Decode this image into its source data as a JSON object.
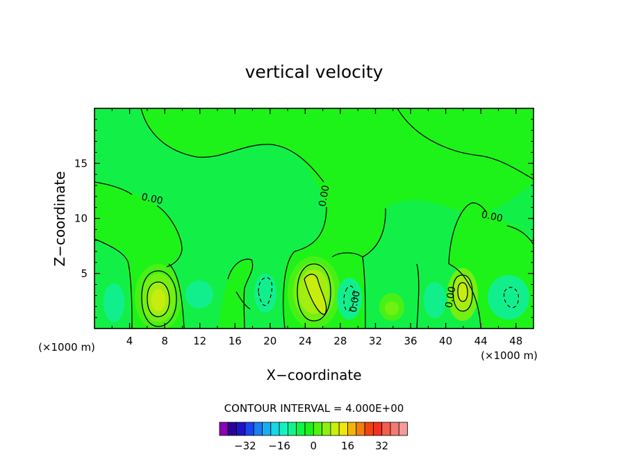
{
  "chart_data": {
    "type": "contour",
    "title": "vertical velocity",
    "xlabel": "X−coordinate",
    "ylabel": "Z−coordinate",
    "x_unit_left": "(×1000 m)",
    "x_unit_right": "(×1000 m)",
    "xlim": [
      0,
      50
    ],
    "ylim": [
      0,
      20
    ],
    "x_ticks": [
      4,
      8,
      12,
      16,
      20,
      24,
      28,
      32,
      36,
      40,
      44,
      48
    ],
    "x_tick_labels": [
      "4",
      "8",
      "12",
      "16",
      "20",
      "24",
      "28",
      "32",
      "36",
      "40",
      "44",
      "48"
    ],
    "y_ticks": [
      5,
      10,
      15
    ],
    "y_tick_labels": [
      "5",
      "10",
      "15"
    ],
    "contour_interval_text": "CONTOUR INTERVAL = 4.000E+00",
    "contour_labels": [
      {
        "text": "0.00",
        "x": 6.5,
        "z": 11.5
      },
      {
        "text": "0.00",
        "x": 26.5,
        "z": 12.0
      },
      {
        "text": "0.00",
        "x": 45.2,
        "z": 9.9
      },
      {
        "text": "0.00",
        "x": 30.0,
        "z": 2.4
      },
      {
        "text": "0.00",
        "x": 40.9,
        "z": 2.8
      }
    ],
    "colorbar": {
      "colors": [
        "#8a00b5",
        "#2a0098",
        "#1f12c8",
        "#1b45ef",
        "#1a7df2",
        "#17aef0",
        "#15d7e6",
        "#14f2c2",
        "#12f48b",
        "#0ff54a",
        "#1bf219",
        "#52f20f",
        "#8ff00d",
        "#c9ef0c",
        "#f2e50c",
        "#f2b50c",
        "#f27f0c",
        "#f2440c",
        "#f2311e",
        "#f25d50",
        "#f27a72",
        "#f49a9a"
      ],
      "tick_labels": [
        "−32",
        "−16",
        "0",
        "16",
        "32"
      ],
      "tick_values": [
        -32,
        -16,
        0,
        16,
        32
      ]
    },
    "field_colors": {
      "zero_band": "#1df319",
      "slight_positive": "#47f116",
      "positive_4": "#72f012",
      "positive_8": "#a3ee10",
      "positive_12": "#c7ed0e",
      "slight_negative": "#11f04c",
      "negative_4": "#11ef8d"
    }
  }
}
